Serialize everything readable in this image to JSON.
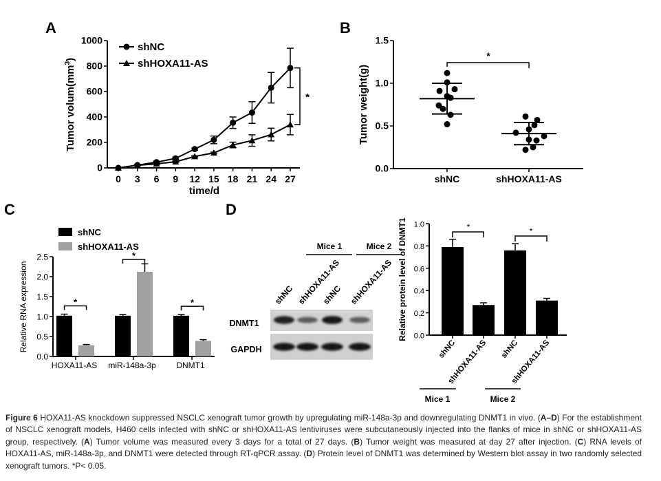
{
  "panels": {
    "a": "A",
    "b": "B",
    "c": "C",
    "d": "D"
  },
  "chart_data": [
    {
      "panel": "A",
      "type": "line",
      "xlabel": "time/d",
      "ylabel": "Tumor volum(mm3)",
      "ylabel_main": "Tumor volum(mm",
      "ylabel_sup": "3",
      "ylabel_close": ")",
      "x": [
        0,
        3,
        6,
        9,
        12,
        15,
        18,
        21,
        24,
        27
      ],
      "xticks": [
        "0",
        "3",
        "6",
        "9",
        "12",
        "15",
        "18",
        "21",
        "24",
        "27"
      ],
      "ylim": [
        0,
        1000
      ],
      "yticks": [
        "0",
        "200",
        "400",
        "600",
        "800",
        "1000"
      ],
      "legend": "top-left",
      "significance": "*",
      "series": [
        {
          "name": "shNC",
          "marker": "circle",
          "values": [
            0,
            22,
            45,
            75,
            148,
            220,
            355,
            435,
            630,
            785
          ],
          "error": [
            0,
            5,
            8,
            10,
            8,
            30,
            45,
            85,
            120,
            155
          ]
        },
        {
          "name": "shHOXA11-AS",
          "marker": "triangle",
          "values": [
            0,
            20,
            32,
            48,
            90,
            118,
            180,
            215,
            262,
            340
          ],
          "error": [
            0,
            3,
            5,
            5,
            5,
            6,
            22,
            45,
            50,
            80
          ]
        }
      ]
    },
    {
      "panel": "B",
      "type": "scatter",
      "ylabel": "Tumor weight(g)",
      "categories": [
        "shNC",
        "shHOXA11-AS"
      ],
      "ylim": [
        0,
        1.5
      ],
      "yticks": [
        "0.0",
        "0.5",
        "1.0",
        "1.5"
      ],
      "significance": "*",
      "series": [
        {
          "category": "shNC",
          "values": [
            1.12,
            1.01,
            0.91,
            0.93,
            0.85,
            0.83,
            0.74,
            0.7,
            0.63,
            0.52
          ],
          "mean": 0.82,
          "sd": 0.18
        },
        {
          "category": "shHOXA11-AS",
          "values": [
            0.61,
            0.57,
            0.51,
            0.46,
            0.42,
            0.38,
            0.34,
            0.33,
            0.25,
            0.22
          ],
          "mean": 0.41,
          "sd": 0.13
        }
      ]
    },
    {
      "panel": "C",
      "type": "bar",
      "ylabel": "Relative RNA expression",
      "categories": [
        "HOXA11-AS",
        "miR-148a-3p",
        "DNMT1"
      ],
      "ylim": [
        0,
        2.5
      ],
      "yticks": [
        "0.0",
        "0.5",
        "1.0",
        "1.5",
        "2.0",
        "2.5"
      ],
      "legend": "top-left",
      "significance": "*",
      "series": [
        {
          "name": "shNC",
          "color": "#000000",
          "values": [
            1.02,
            1.02,
            1.02
          ],
          "error": [
            0.04,
            0.03,
            0.03
          ]
        },
        {
          "name": "shHOXA11-AS",
          "color": "#a0a0a0",
          "values": [
            0.28,
            2.12,
            0.39
          ],
          "error": [
            0.02,
            0.2,
            0.03
          ]
        }
      ]
    },
    {
      "panel": "D",
      "type": "bar",
      "ylabel": "Relative protein level of DNMT1",
      "categories": [
        "shNC",
        "shHOXA11-AS",
        "shNC",
        "shHOXA11-AS"
      ],
      "groups": [
        "Mice 1",
        "Mice 2"
      ],
      "ylim": [
        0,
        1.0
      ],
      "yticks": [
        "0.0",
        "0.2",
        "0.4",
        "0.6",
        "0.8",
        "1.0"
      ],
      "significance": "*",
      "values": [
        0.79,
        0.27,
        0.76,
        0.31
      ],
      "error": [
        0.07,
        0.02,
        0.06,
        0.02
      ],
      "color": "#000000"
    }
  ],
  "blot": {
    "groups": [
      "Mice 1",
      "Mice 2"
    ],
    "lanes": [
      "shNC",
      "shHOXA11-AS",
      "shNC",
      "shHOXA11-AS"
    ],
    "rows": [
      "DNMT1",
      "GAPDH"
    ],
    "dnmt1_intensity": [
      0.9,
      0.6,
      0.95,
      0.6
    ],
    "gapdh_intensity": [
      0.95,
      0.95,
      0.95,
      0.95
    ]
  },
  "caption": {
    "fig": "Figure 6",
    "t1": " HOXA11-AS knockdown suppressed NSCLC xenograft tumor growth by upregulating miR-148a-3p and downregulating DNMT1 in vivo. (",
    "ad": "A–D",
    "t2": ") For the establishment of NSCLC xenograft models, H460 cells infected with shNC or shHOXA11-AS lentiviruses were subcutaneously injected into the flanks of mice in shNC or shHOXA11-AS group, respectively. (",
    "a": "A",
    "t3": ") Tumor volume was measured every 3 days for a total of 27 days. (",
    "b": "B",
    "t4": ") Tumor weight was measured at day 27 after injection. (",
    "c": "C",
    "t5": ") RNA levels of HOXA11-AS, miR-148a-3p, and DNMT1 were detected through RT-qPCR assay. (",
    "d": "D",
    "t6": ") Protein level of DNMT1 was determined by Western blot assay in two randomly selected xenograft tumors. *P< 0.05."
  }
}
